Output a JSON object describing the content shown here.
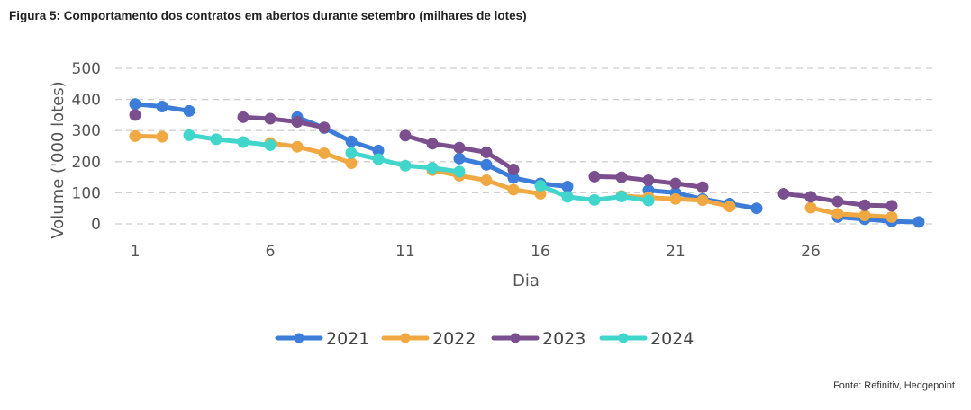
{
  "title": "Figura 5: Comportamento dos contratos em abertos durante setembro (milhares de lotes)",
  "source": "Fonte: Refinitiv, Hedgepoint",
  "chart_data": {
    "type": "line",
    "title": "Figura 5: Comportamento dos contratos em abertos durante setembro (milhares de lotes)",
    "xlabel": "Dia",
    "ylabel": "Volume ('000 lotes)",
    "xlim": [
      1,
      30
    ],
    "ylim": [
      0,
      500
    ],
    "xticks": [
      1,
      6,
      11,
      16,
      21,
      26
    ],
    "yticks": [
      0,
      100,
      200,
      300,
      400,
      500
    ],
    "grid": "horizontal-dashed",
    "legend": "bottom-center",
    "series": [
      {
        "name": "2021",
        "color": "#3b7dd8",
        "segments": [
          [
            [
              1,
              385
            ],
            [
              2,
              377
            ],
            [
              3,
              363
            ]
          ],
          [
            [
              7,
              343
            ],
            [
              8,
              308
            ],
            [
              9,
              265
            ],
            [
              10,
              236
            ]
          ],
          [
            [
              13,
              210
            ],
            [
              14,
              190
            ],
            [
              15,
              148
            ],
            [
              16,
              130
            ],
            [
              17,
              120
            ]
          ],
          [
            [
              20,
              108
            ],
            [
              21,
              100
            ],
            [
              22,
              80
            ],
            [
              23,
              65
            ],
            [
              24,
              50
            ]
          ],
          [
            [
              27,
              22
            ],
            [
              28,
              15
            ],
            [
              29,
              8
            ],
            [
              30,
              6
            ]
          ]
        ]
      },
      {
        "name": "2022",
        "color": "#f0a843",
        "segments": [
          [
            [
              1,
              282
            ],
            [
              2,
              280
            ]
          ],
          [
            [
              6,
              260
            ],
            [
              7,
              248
            ],
            [
              8,
              227
            ],
            [
              9,
              195
            ]
          ],
          [
            [
              12,
              173
            ],
            [
              13,
              155
            ],
            [
              14,
              140
            ],
            [
              15,
              110
            ],
            [
              16,
              97
            ]
          ],
          [
            [
              19,
              90
            ],
            [
              20,
              85
            ],
            [
              21,
              80
            ],
            [
              22,
              76
            ],
            [
              23,
              56
            ]
          ],
          [
            [
              26,
              52
            ],
            [
              27,
              32
            ],
            [
              28,
              27
            ],
            [
              29,
              22
            ]
          ]
        ]
      },
      {
        "name": "2023",
        "color": "#7b4f8e",
        "segments": [
          [
            [
              1,
              350
            ]
          ],
          [
            [
              5,
              343
            ],
            [
              6,
              338
            ],
            [
              7,
              328
            ],
            [
              8,
              310
            ]
          ],
          [
            [
              11,
              284
            ],
            [
              12,
              258
            ],
            [
              13,
              245
            ],
            [
              14,
              230
            ],
            [
              15,
              175
            ]
          ],
          [
            [
              18,
              152
            ],
            [
              19,
              150
            ],
            [
              20,
              140
            ],
            [
              21,
              130
            ],
            [
              22,
              118
            ]
          ],
          [
            [
              25,
              97
            ],
            [
              26,
              87
            ],
            [
              27,
              72
            ],
            [
              28,
              60
            ],
            [
              29,
              58
            ]
          ]
        ]
      },
      {
        "name": "2024",
        "color": "#40d6cc",
        "segments": [
          [
            [
              3,
              285
            ],
            [
              4,
              272
            ],
            [
              5,
              263
            ],
            [
              6,
              253
            ]
          ],
          [
            [
              9,
              228
            ],
            [
              10,
              208
            ],
            [
              11,
              187
            ],
            [
              12,
              180
            ],
            [
              13,
              168
            ]
          ],
          [
            [
              16,
              123
            ],
            [
              17,
              87
            ],
            [
              18,
              77
            ],
            [
              19,
              88
            ],
            [
              20,
              75
            ]
          ]
        ]
      }
    ]
  }
}
